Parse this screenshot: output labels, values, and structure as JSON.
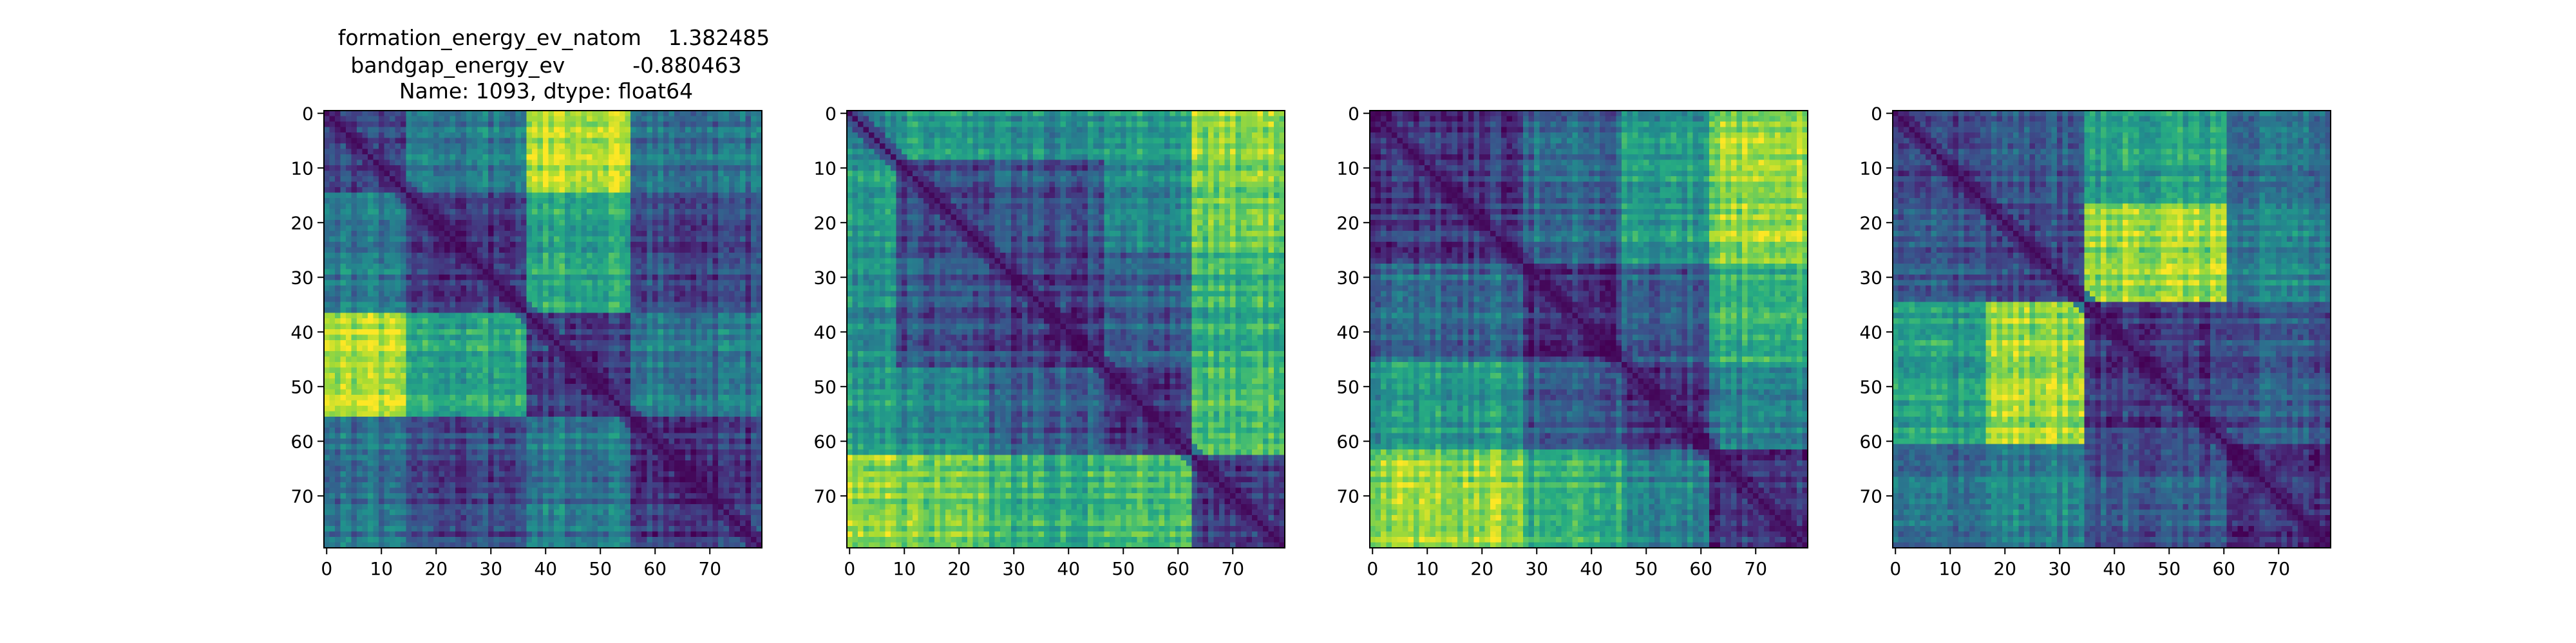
{
  "chart_data": [
    {
      "type": "heatmap",
      "colormap": "viridis",
      "title": "formation_energy_ev_natom    1.382485\nbandgap_energy_ev          -0.880463\nName: 1093, dtype: float64",
      "title_lines": [
        "formation_energy_ev_natom    1.382485",
        "bandgap_energy_ev          -0.880463",
        "Name: 1093, dtype: float64"
      ],
      "xlabel": "",
      "ylabel": "",
      "size": 80,
      "xticks": [
        0,
        10,
        20,
        30,
        40,
        50,
        60,
        70
      ],
      "yticks": [
        0,
        10,
        20,
        30,
        40,
        50,
        60,
        70
      ],
      "blocks": [
        [
          0,
          15
        ],
        [
          15,
          37
        ],
        [
          37,
          56
        ],
        [
          56,
          80
        ]
      ],
      "block_values": [
        [
          0.22,
          0.42,
          0.9,
          0.38
        ],
        [
          0.42,
          0.18,
          0.6,
          0.22
        ],
        [
          0.9,
          0.6,
          0.18,
          0.4
        ],
        [
          0.38,
          0.22,
          0.4,
          0.15
        ]
      ]
    },
    {
      "type": "heatmap",
      "colormap": "viridis",
      "xlabel": "",
      "ylabel": "",
      "size": 80,
      "xticks": [
        0,
        10,
        20,
        30,
        40,
        50,
        60,
        70
      ],
      "yticks": [
        0,
        10,
        20,
        30,
        40,
        50,
        60,
        70
      ],
      "blocks": [
        [
          0,
          9
        ],
        [
          9,
          26
        ],
        [
          26,
          47
        ],
        [
          47,
          63
        ],
        [
          63,
          80
        ]
      ],
      "block_values": [
        [
          0.45,
          0.55,
          0.5,
          0.55,
          0.85
        ],
        [
          0.55,
          0.2,
          0.25,
          0.45,
          0.78
        ],
        [
          0.5,
          0.25,
          0.18,
          0.3,
          0.65
        ],
        [
          0.55,
          0.45,
          0.3,
          0.15,
          0.7
        ],
        [
          0.85,
          0.78,
          0.65,
          0.7,
          0.2
        ]
      ]
    },
    {
      "type": "heatmap",
      "colormap": "viridis",
      "xlabel": "",
      "ylabel": "",
      "size": 80,
      "xticks": [
        0,
        10,
        20,
        30,
        40,
        50,
        60,
        70
      ],
      "yticks": [
        0,
        10,
        20,
        30,
        40,
        50,
        60,
        70
      ],
      "blocks": [
        [
          0,
          28
        ],
        [
          28,
          46
        ],
        [
          46,
          62
        ],
        [
          62,
          80
        ]
      ],
      "block_values": [
        [
          0.18,
          0.35,
          0.55,
          0.85
        ],
        [
          0.35,
          0.15,
          0.3,
          0.65
        ],
        [
          0.55,
          0.3,
          0.15,
          0.45
        ],
        [
          0.85,
          0.65,
          0.45,
          0.15
        ]
      ]
    },
    {
      "type": "heatmap",
      "colormap": "viridis",
      "xlabel": "",
      "ylabel": "",
      "size": 80,
      "xticks": [
        0,
        10,
        20,
        30,
        40,
        50,
        60,
        70
      ],
      "yticks": [
        0,
        10,
        20,
        30,
        40,
        50,
        60,
        70
      ],
      "blocks": [
        [
          0,
          17
        ],
        [
          17,
          35
        ],
        [
          35,
          61
        ],
        [
          61,
          80
        ]
      ],
      "block_values": [
        [
          0.18,
          0.25,
          0.55,
          0.35
        ],
        [
          0.25,
          0.2,
          0.85,
          0.45
        ],
        [
          0.55,
          0.85,
          0.18,
          0.28
        ],
        [
          0.35,
          0.45,
          0.28,
          0.15
        ]
      ]
    }
  ]
}
